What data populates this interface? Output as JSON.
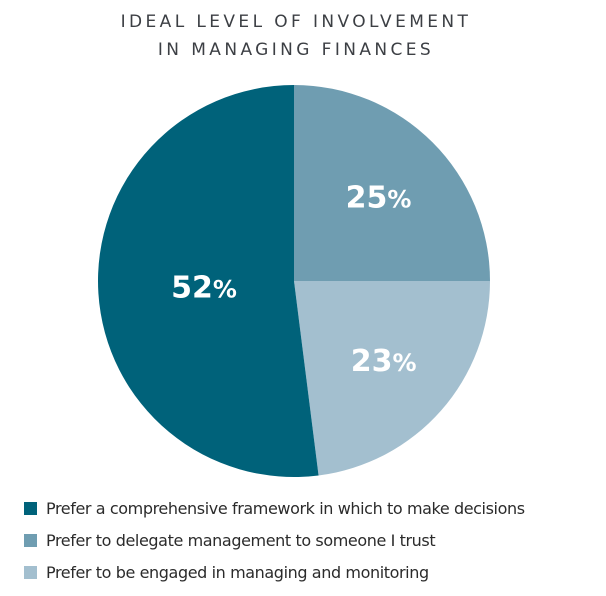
{
  "chart_data": {
    "type": "pie",
    "title_lines": [
      "IDEAL LEVEL OF INVOLVEMENT",
      "IN MANAGING FINANCES"
    ],
    "slices": [
      {
        "label": "Prefer to delegate management to someone I trust",
        "value": 25,
        "display": "25%",
        "color": "#6f9db1"
      },
      {
        "label": "Prefer to be engaged in managing and monitoring",
        "value": 23,
        "display": "23%",
        "color": "#a3bfcf"
      },
      {
        "label": "Prefer a comprehensive framework in which to make decisions",
        "value": 52,
        "display": "52%",
        "color": "#00627a"
      }
    ],
    "legend": [
      {
        "label": "Prefer a comprehensive framework in which to make decisions",
        "color": "#00627a"
      },
      {
        "label": "Prefer to delegate management to someone I trust",
        "color": "#6f9db1"
      },
      {
        "label": "Prefer to be engaged in managing and monitoring",
        "color": "#a3bfcf"
      }
    ],
    "legend_position": "bottom-left"
  }
}
